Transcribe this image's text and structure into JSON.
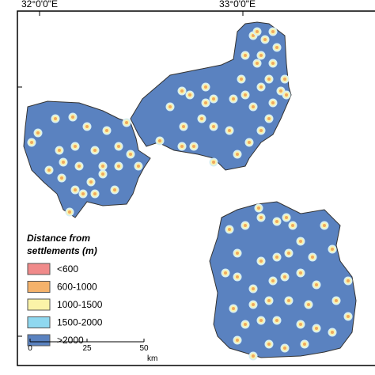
{
  "map": {
    "lon_labels": [
      "32°0'0\"E",
      "33°0'0\"E"
    ],
    "legend": {
      "title": [
        "Distance from",
        "settlements (m)"
      ],
      "items": [
        {
          "label": "<600",
          "color": "#f08a8a"
        },
        {
          "label": "600-1000",
          "color": "#f5b26b"
        },
        {
          "label": "1000-1500",
          "color": "#fbf3a8"
        },
        {
          "label": "1500-2000",
          "color": "#8fd8f0"
        },
        {
          "label": ">2000",
          "color": "#5a82c0"
        }
      ]
    },
    "scale": {
      "labels": [
        "0",
        "25",
        "50"
      ],
      "unit": "km"
    }
  }
}
